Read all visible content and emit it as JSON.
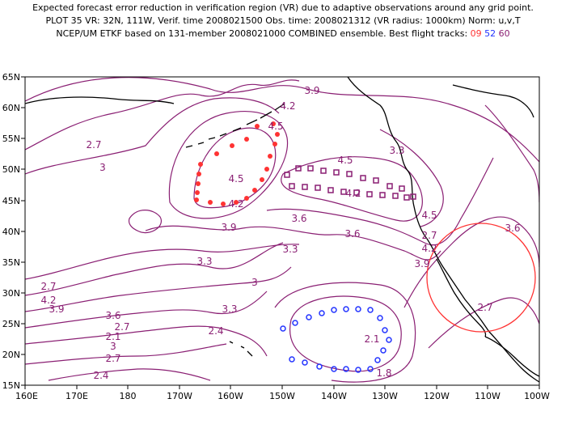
{
  "header": {
    "line1": "Expected forecast error reduction in verification region (VR) due to adaptive observations around any grid point.",
    "line2": "PLOT 35 VR: 32N, 111W, Verif. time 2008021500 Obs. time: 2008021312 (VR radius: 1000km) Norm: u,v,T",
    "line3_prefix": "NCEP/UM ETKF based on 131-member 2008021000 COMBINED ensemble.  Best flight tracks:",
    "tracks": [
      {
        "label": "09",
        "color": "#ff3333"
      },
      {
        "label": "52",
        "color": "#2233ff"
      },
      {
        "label": "60",
        "color": "#8a1f73"
      }
    ]
  },
  "map": {
    "lat_labels": [
      "65N",
      "60N",
      "55N",
      "50N",
      "45N",
      "40N",
      "35N",
      "30N",
      "25N",
      "20N",
      "15N"
    ],
    "lon_labels": [
      "160E",
      "170E",
      "180",
      "170W",
      "160W",
      "150W",
      "140W",
      "130W",
      "120W",
      "110W",
      "100W"
    ],
    "contour_color": "#8a1f73",
    "contour_labels": [
      "3.9",
      "4.2",
      "4.5",
      "2.7",
      "3",
      "4.2",
      "4.5",
      "4.5",
      "4.2",
      "3.9",
      "3.6",
      "3.6",
      "3.3",
      "3.3",
      "3",
      "2.7",
      "4.2",
      "3.9",
      "3.6",
      "3.3",
      "2.4",
      "2.1",
      "2.7",
      "3",
      "2.7",
      "2.4",
      "2.1",
      "1.8",
      "3.3",
      "2.7",
      "4.5",
      "4.2",
      "3.9",
      "3.6",
      "2.7",
      "2.7"
    ],
    "verification_region": {
      "center": "32N, 111W",
      "radius_km": 1000,
      "color": "#ff3333"
    }
  }
}
